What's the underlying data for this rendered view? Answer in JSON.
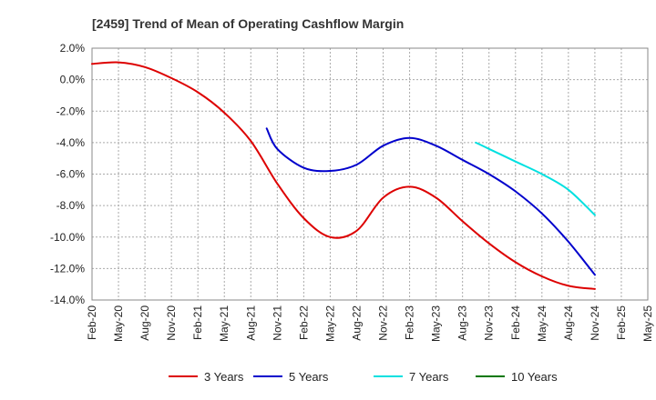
{
  "chart_data": {
    "type": "line",
    "title": "[2459]  Trend of Mean of Operating Cashflow Margin",
    "xlabel": "",
    "ylabel": "",
    "ylim": [
      -14,
      2
    ],
    "y_ticks": [
      2,
      0,
      -2,
      -4,
      -6,
      -8,
      -10,
      -12,
      -14
    ],
    "y_tick_labels": [
      "2.0%",
      "0.0%",
      "-2.0%",
      "-4.0%",
      "-6.0%",
      "-8.0%",
      "-10.0%",
      "-12.0%",
      "-14.0%"
    ],
    "categories": [
      "Feb-20",
      "May-20",
      "Aug-20",
      "Nov-20",
      "Feb-21",
      "May-21",
      "Aug-21",
      "Nov-21",
      "Feb-22",
      "May-22",
      "Aug-22",
      "Nov-22",
      "Feb-23",
      "May-23",
      "Aug-23",
      "Nov-23",
      "Feb-24",
      "May-24",
      "Aug-24",
      "Nov-24",
      "Feb-25",
      "May-25"
    ],
    "grid": true,
    "legend_position": "bottom",
    "series": [
      {
        "name": "3 Years",
        "color": "#dd0000",
        "x": [
          0,
          1,
          2,
          3,
          4,
          5,
          6,
          7,
          8,
          9,
          10,
          11,
          12,
          13,
          14,
          15,
          16,
          17,
          18,
          19
        ],
        "values": [
          1.0,
          1.1,
          0.8,
          0.1,
          -0.8,
          -2.1,
          -3.9,
          -6.6,
          -8.8,
          -10.0,
          -9.6,
          -7.5,
          -6.8,
          -7.5,
          -9.0,
          -10.4,
          -11.6,
          -12.5,
          -13.1,
          -13.3
        ]
      },
      {
        "name": "5 Years",
        "color": "#0000cc",
        "x": [
          6.6,
          7,
          8,
          9,
          10,
          11,
          12,
          13,
          14,
          15,
          16,
          17,
          18,
          19
        ],
        "values": [
          -3.1,
          -4.4,
          -5.6,
          -5.8,
          -5.4,
          -4.2,
          -3.7,
          -4.2,
          -5.1,
          -6.0,
          -7.1,
          -8.5,
          -10.3,
          -12.4
        ]
      },
      {
        "name": "7 Years",
        "color": "#00e0e0",
        "x": [
          14.5,
          15,
          16,
          17,
          18,
          19
        ],
        "values": [
          -4.0,
          -4.4,
          -5.2,
          -6.0,
          -7.0,
          -8.6
        ]
      },
      {
        "name": "10 Years",
        "color": "#007700",
        "x": [],
        "values": []
      }
    ]
  }
}
